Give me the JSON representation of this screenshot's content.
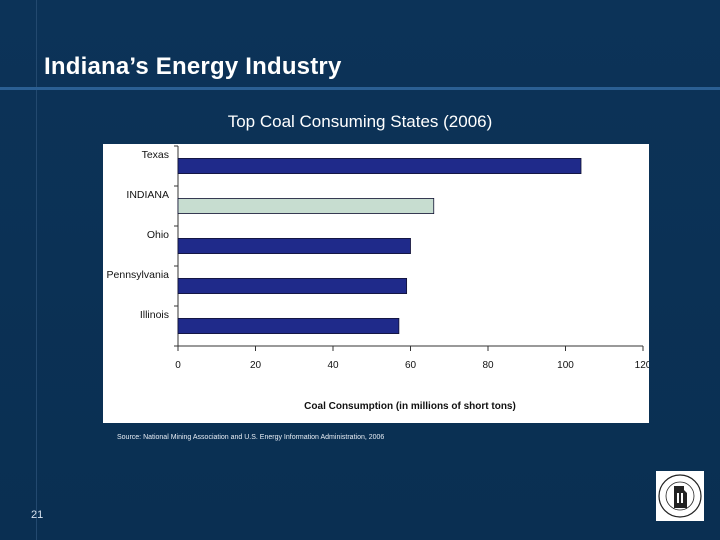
{
  "slide": {
    "title": "Indiana’s Energy Industry",
    "source": "Source:   National Mining Association and U.S. Energy Information Administration, 2006",
    "page_number": "21"
  },
  "chart_data": {
    "type": "bar",
    "orientation": "horizontal",
    "title": "Top Coal Consuming States (2006)",
    "xlabel": "Coal Consumption (in millions of short tons)",
    "ylabel": "",
    "categories": [
      "Texas",
      "INDIANA",
      "Ohio",
      "Pennsylvania",
      "Illinois"
    ],
    "values": [
      104,
      66,
      60,
      59,
      57
    ],
    "highlight": "INDIANA",
    "xlim": [
      0,
      120
    ],
    "xticks": [
      0,
      20,
      40,
      60,
      80,
      100,
      120
    ],
    "grid": false,
    "colors": {
      "bar": "#1f2a8a",
      "highlight_bar": "#c7ddd0",
      "bar_stroke": "#111133"
    }
  },
  "seal": {
    "icon": "indiana-state-seal-icon"
  }
}
